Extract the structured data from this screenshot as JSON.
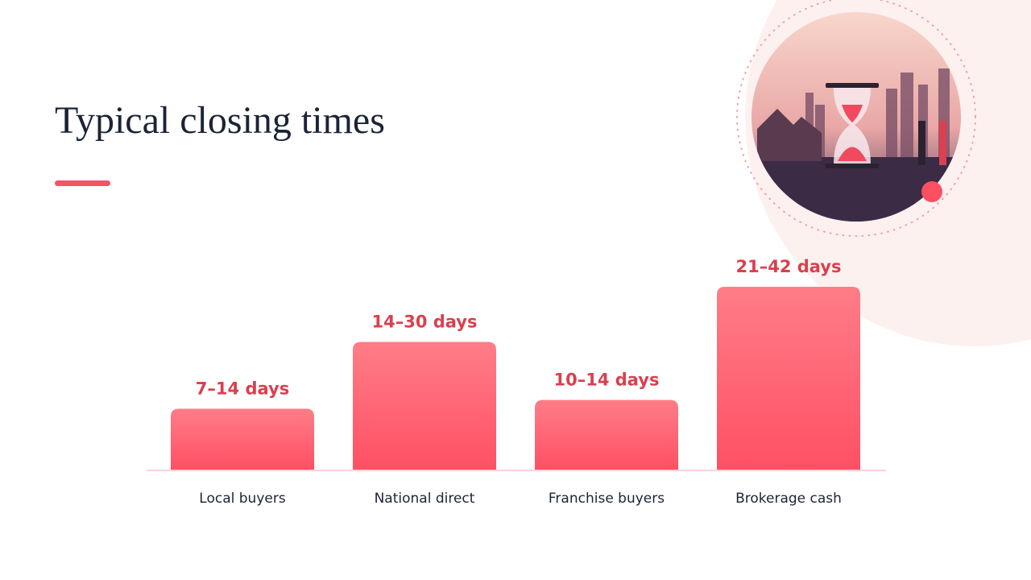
{
  "chart_data": {
    "type": "bar",
    "title": "Typical closing times",
    "categories": [
      "Local buyers",
      "National direct",
      "Franchise buyers",
      "Brokerage cash"
    ],
    "low": [
      7,
      14,
      10,
      21
    ],
    "high": [
      14,
      30,
      14,
      42
    ],
    "value_labels": [
      "7–14 days",
      "14–30 days",
      "10–14 days",
      "21–42 days"
    ],
    "color": "#ff5a6b"
  }
}
